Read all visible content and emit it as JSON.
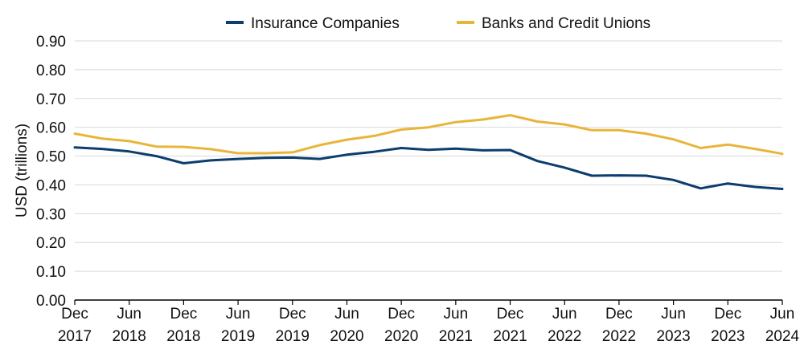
{
  "chart_data": {
    "type": "line",
    "title": "",
    "xlabel": "",
    "ylabel": "USD (trillions)",
    "ylim": [
      0,
      0.9
    ],
    "yticks": [
      "0.00",
      "0.10",
      "0.20",
      "0.30",
      "0.40",
      "0.50",
      "0.60",
      "0.70",
      "0.80",
      "0.90"
    ],
    "grid": true,
    "legend_position": "top-center",
    "x": [
      "Dec 2017",
      "Mar 2018",
      "Jun 2018",
      "Sep 2018",
      "Dec 2018",
      "Mar 2019",
      "Jun 2019",
      "Sep 2019",
      "Dec 2019",
      "Mar 2020",
      "Jun 2020",
      "Sep 2020",
      "Dec 2020",
      "Mar 2021",
      "Jun 2021",
      "Sep 2021",
      "Dec 2021",
      "Mar 2022",
      "Jun 2022",
      "Sep 2022",
      "Dec 2022",
      "Mar 2023",
      "Jun 2023",
      "Sep 2023",
      "Dec 2023",
      "Mar 2024",
      "Jun 2024"
    ],
    "x_tick_labels": [
      {
        "index": 0,
        "line1": "Dec",
        "line2": "2017"
      },
      {
        "index": 2,
        "line1": "Jun",
        "line2": "2018"
      },
      {
        "index": 4,
        "line1": "Dec",
        "line2": "2018"
      },
      {
        "index": 6,
        "line1": "Jun",
        "line2": "2019"
      },
      {
        "index": 8,
        "line1": "Dec",
        "line2": "2019"
      },
      {
        "index": 10,
        "line1": "Jun",
        "line2": "2020"
      },
      {
        "index": 12,
        "line1": "Dec",
        "line2": "2020"
      },
      {
        "index": 14,
        "line1": "Jun",
        "line2": "2021"
      },
      {
        "index": 16,
        "line1": "Dec",
        "line2": "2021"
      },
      {
        "index": 18,
        "line1": "Jun",
        "line2": "2022"
      },
      {
        "index": 20,
        "line1": "Dec",
        "line2": "2022"
      },
      {
        "index": 22,
        "line1": "Jun",
        "line2": "2023"
      },
      {
        "index": 24,
        "line1": "Dec",
        "line2": "2023"
      },
      {
        "index": 26,
        "line1": "Jun",
        "line2": "2024"
      }
    ],
    "series": [
      {
        "name": "Insurance Companies",
        "color": "#0b3d6e",
        "values": [
          0.53,
          0.525,
          0.516,
          0.5,
          0.475,
          0.485,
          0.49,
          0.494,
          0.495,
          0.49,
          0.505,
          0.515,
          0.528,
          0.522,
          0.526,
          0.52,
          0.521,
          0.483,
          0.46,
          0.432,
          0.433,
          0.432,
          0.417,
          0.388,
          0.405,
          0.393,
          0.386
        ]
      },
      {
        "name": "Banks and Credit Unions",
        "color": "#e8b53a",
        "values": [
          0.578,
          0.561,
          0.552,
          0.533,
          0.532,
          0.524,
          0.51,
          0.51,
          0.513,
          0.538,
          0.557,
          0.57,
          0.592,
          0.6,
          0.618,
          0.627,
          0.642,
          0.62,
          0.61,
          0.59,
          0.59,
          0.578,
          0.558,
          0.528,
          0.54,
          0.525,
          0.508
        ]
      }
    ]
  }
}
